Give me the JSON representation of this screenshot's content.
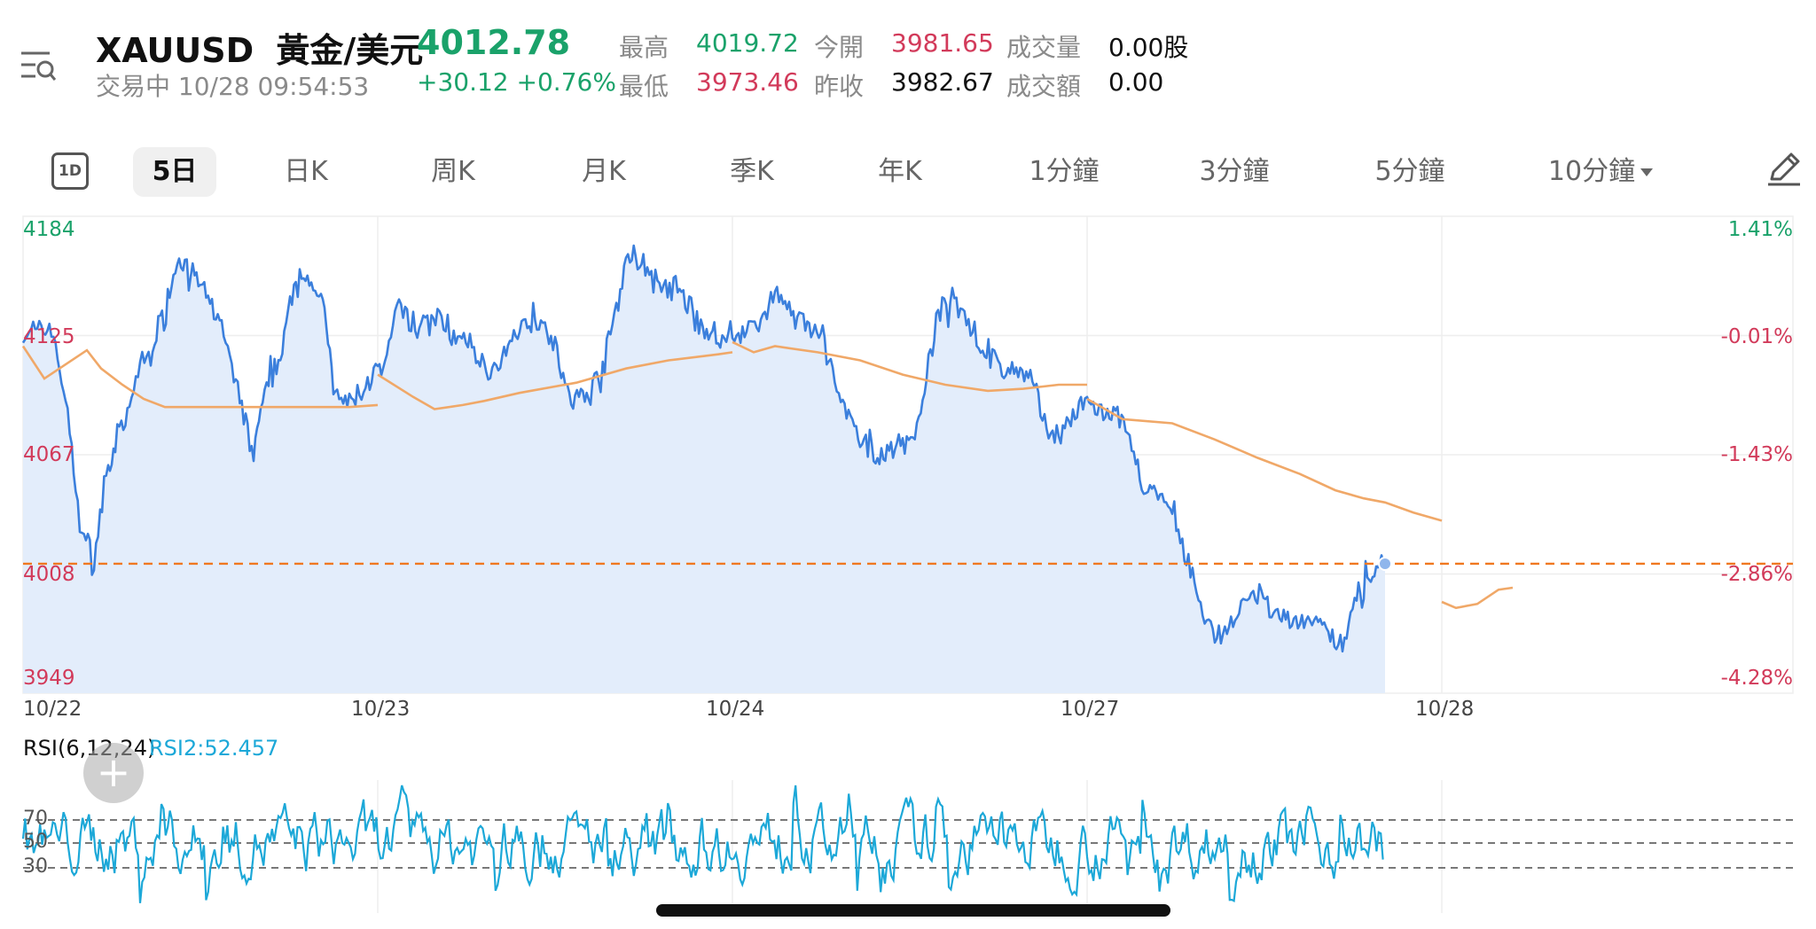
{
  "header": {
    "symbol": "XAUUSD",
    "name": "黃金/美元",
    "price": "4012.78",
    "status": "交易中 10/28 09:54:53",
    "change": "+30.12 +0.76%",
    "stats": [
      {
        "label": "最高",
        "value": "4019.72",
        "color": "#1aa26a"
      },
      {
        "label": "最低",
        "value": "3973.46",
        "color": "#d23a5a"
      },
      {
        "label": "今開",
        "value": "3981.65",
        "color": "#d23a5a"
      },
      {
        "label": "昨收",
        "value": "3982.67",
        "color": "#111111"
      },
      {
        "label": "成交量",
        "value": "0.00股",
        "color": "#111111"
      },
      {
        "label": "成交額",
        "value": "0.00",
        "color": "#111111"
      }
    ]
  },
  "tabs": {
    "t1d": "1D",
    "items": [
      "5日",
      "日K",
      "周K",
      "月K",
      "季K",
      "年K",
      "1分鐘",
      "3分鐘",
      "5分鐘",
      "10分鐘"
    ],
    "active_index": 0
  },
  "icons": {
    "menu": "menu-search-icon",
    "pencil": "pencil-icon",
    "plus": "plus-icon",
    "dropdown": "caret-down-icon"
  },
  "colors": {
    "up": "#1aa26a",
    "down": "#d23a5a",
    "line": "#3b7fdc",
    "ma": "#f0a868",
    "current": "#f07820",
    "rsi": "#1ca8d8"
  },
  "chart_data": [
    {
      "type": "line",
      "title": "",
      "x_ticks": [
        "10/22",
        "10/23",
        "10/24",
        "10/27",
        "10/28"
      ],
      "y_ticks_left": [
        "4184",
        "4125",
        "4067",
        "4008",
        "3949"
      ],
      "y_ticks_right": [
        "1.41%",
        "-0.01%",
        "-1.43%",
        "-2.86%",
        "-4.28%"
      ],
      "ylim": [
        3949,
        4184
      ],
      "current_price": 4012.78,
      "series": [
        {
          "role": "price",
          "keypoints": [
            [
              0.0,
              4125
            ],
            [
              0.04,
              4127
            ],
            [
              0.08,
              4130
            ],
            [
              0.12,
              4094
            ],
            [
              0.16,
              4033
            ],
            [
              0.2,
              4014
            ],
            [
              0.24,
              4060
            ],
            [
              0.26,
              4070
            ],
            [
              0.3,
              4088
            ],
            [
              0.33,
              4112
            ],
            [
              0.36,
              4116
            ],
            [
              0.44,
              4165
            ],
            [
              0.5,
              4150
            ],
            [
              0.56,
              4130
            ],
            [
              0.6,
              4101
            ],
            [
              0.65,
              4067
            ],
            [
              0.67,
              4088
            ],
            [
              0.72,
              4114
            ],
            [
              0.78,
              4160
            ],
            [
              0.84,
              4144
            ],
            [
              0.86,
              4123
            ],
            [
              0.88,
              4094
            ],
            [
              0.92,
              4092
            ],
            [
              0.96,
              4100
            ],
            [
              1.0,
              4108
            ],
            [
              1.02,
              4110
            ],
            [
              1.06,
              4141
            ],
            [
              1.1,
              4128
            ],
            [
              1.14,
              4134
            ],
            [
              1.18,
              4132
            ],
            [
              1.22,
              4123
            ],
            [
              1.26,
              4121
            ],
            [
              1.3,
              4110
            ],
            [
              1.34,
              4108
            ],
            [
              1.4,
              4130
            ],
            [
              1.46,
              4134
            ],
            [
              1.5,
              4122
            ],
            [
              1.54,
              4092
            ],
            [
              1.6,
              4098
            ],
            [
              1.64,
              4113
            ],
            [
              1.7,
              4162
            ],
            [
              1.76,
              4160
            ],
            [
              1.8,
              4147
            ],
            [
              1.84,
              4149
            ],
            [
              1.9,
              4132
            ],
            [
              1.96,
              4122
            ],
            [
              2.0,
              4124
            ],
            [
              2.04,
              4130
            ],
            [
              2.08,
              4130
            ],
            [
              2.12,
              4149
            ],
            [
              2.16,
              4138
            ],
            [
              2.2,
              4131
            ],
            [
              2.26,
              4121
            ],
            [
              2.3,
              4095
            ],
            [
              2.36,
              4072
            ],
            [
              2.42,
              4066
            ],
            [
              2.48,
              4072
            ],
            [
              2.52,
              4079
            ],
            [
              2.58,
              4136
            ],
            [
              2.62,
              4143
            ],
            [
              2.66,
              4136
            ],
            [
              2.7,
              4120
            ],
            [
              2.76,
              4108
            ],
            [
              2.8,
              4108
            ],
            [
              2.84,
              4106
            ],
            [
              2.88,
              4081
            ],
            [
              2.92,
              4076
            ],
            [
              2.96,
              4085
            ],
            [
              3.0,
              4093
            ],
            [
              3.04,
              4086
            ],
            [
              3.08,
              4087
            ],
            [
              3.12,
              4072
            ],
            [
              3.16,
              4052
            ],
            [
              3.2,
              4046
            ],
            [
              3.24,
              4036
            ],
            [
              3.28,
              4015
            ],
            [
              3.32,
              3994
            ],
            [
              3.36,
              3976
            ],
            [
              3.4,
              3982
            ],
            [
              3.44,
              3992
            ],
            [
              3.48,
              3997
            ],
            [
              3.52,
              3991
            ],
            [
              3.56,
              3986
            ],
            [
              3.6,
              3982
            ],
            [
              3.64,
              3986
            ],
            [
              3.68,
              3978
            ],
            [
              3.72,
              3975
            ],
            [
              3.76,
              3997
            ],
            [
              3.78,
              3999
            ],
            [
              3.8,
              4008
            ],
            [
              3.82,
              4015
            ],
            [
              3.84,
              4012.78
            ]
          ]
        },
        {
          "role": "moving-average",
          "segments": [
            [
              [
                0.0,
                4120
              ],
              [
                0.06,
                4104
              ],
              [
                0.12,
                4111
              ],
              [
                0.18,
                4118
              ],
              [
                0.22,
                4109
              ],
              [
                0.28,
                4101
              ],
              [
                0.34,
                4094
              ],
              [
                0.4,
                4090
              ],
              [
                0.5,
                4090
              ],
              [
                0.66,
                4090
              ],
              [
                0.8,
                4090
              ],
              [
                0.92,
                4090
              ],
              [
                1.0,
                4091
              ]
            ],
            [
              [
                1.0,
                4106
              ],
              [
                1.1,
                4095
              ],
              [
                1.16,
                4089
              ],
              [
                1.24,
                4091
              ],
              [
                1.3,
                4093
              ],
              [
                1.4,
                4097
              ],
              [
                1.56,
                4102
              ],
              [
                1.7,
                4109
              ],
              [
                1.82,
                4113
              ],
              [
                1.96,
                4116
              ],
              [
                2.0,
                4117
              ]
            ],
            [
              [
                2.0,
                4122
              ],
              [
                2.06,
                4117
              ],
              [
                2.12,
                4120
              ],
              [
                2.24,
                4117
              ],
              [
                2.36,
                4113
              ],
              [
                2.48,
                4106
              ],
              [
                2.6,
                4101
              ],
              [
                2.72,
                4098
              ],
              [
                2.82,
                4099
              ],
              [
                2.92,
                4101
              ],
              [
                3.0,
                4101
              ]
            ],
            [
              [
                3.0,
                4094
              ],
              [
                3.1,
                4084
              ],
              [
                3.24,
                4082
              ],
              [
                3.36,
                4074
              ],
              [
                3.48,
                4065
              ],
              [
                3.6,
                4057
              ],
              [
                3.7,
                4049
              ],
              [
                3.78,
                4045
              ],
              [
                3.84,
                4043
              ],
              [
                3.92,
                4038
              ],
              [
                4.0,
                4034
              ]
            ],
            [
              [
                4.0,
                3994
              ],
              [
                4.04,
                3991
              ],
              [
                4.1,
                3993
              ],
              [
                4.16,
                4000
              ],
              [
                4.2,
                4001
              ]
            ]
          ]
        }
      ]
    },
    {
      "type": "line",
      "title": "RSI(6,12,24)",
      "legend": "RSI2:52.457",
      "levels": [
        "70",
        "50",
        "30"
      ],
      "ylim": [
        0,
        100
      ]
    }
  ]
}
